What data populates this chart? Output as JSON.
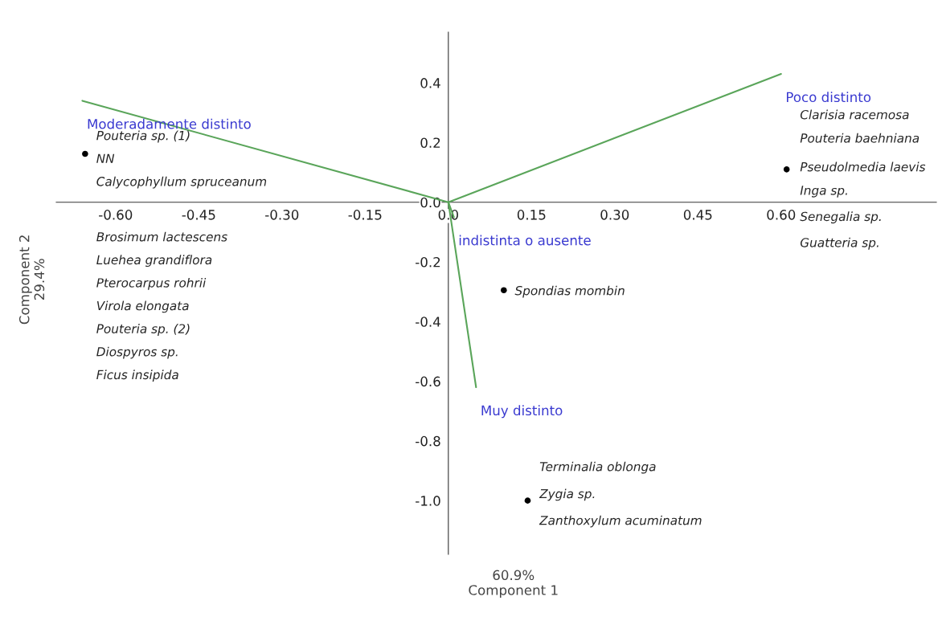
{
  "chart_data": {
    "type": "scatter",
    "xlabel": "60.9%\nComponent 1",
    "ylabel": "Component 2\n29.4%",
    "xlim": [
      -0.707,
      0.88
    ],
    "ylim": [
      -1.18,
      0.57
    ],
    "xticks": [
      {
        "value": -0.6,
        "label": "-0.60"
      },
      {
        "value": -0.45,
        "label": "-0.45"
      },
      {
        "value": -0.3,
        "label": "-0.30"
      },
      {
        "value": -0.15,
        "label": "-0.15"
      },
      {
        "value": 0,
        "label": "0.0"
      },
      {
        "value": 0.15,
        "label": "0.15"
      },
      {
        "value": 0.3,
        "label": "0.30"
      },
      {
        "value": 0.45,
        "label": "0.45"
      },
      {
        "value": 0.6,
        "label": "0.60"
      }
    ],
    "yticks": [
      {
        "value": -1.0,
        "label": "-1.0"
      },
      {
        "value": -0.8,
        "label": "-0.8"
      },
      {
        "value": -0.6,
        "label": "-0.6"
      },
      {
        "value": -0.4,
        "label": "-0.4"
      },
      {
        "value": -0.2,
        "label": "-0.2"
      },
      {
        "value": 0,
        "label": "0.0"
      },
      {
        "value": 0.2,
        "label": "0.2"
      },
      {
        "value": 0.4,
        "label": "0.4"
      }
    ],
    "grid": false,
    "legend": false,
    "series": [
      {
        "color": "#000000",
        "x": [
          -0.655,
          0.61,
          0.1,
          0.143
        ],
        "values": [
          0.162,
          0.11,
          -0.295,
          -1.0
        ]
      },
      {
        "type": "line",
        "name": "Moderadamente distinto",
        "color": "#5aa55a",
        "x": [
          0,
          -0.66
        ],
        "values": [
          0,
          0.34
        ]
      },
      {
        "type": "line",
        "name": "Poco distinto",
        "color": "#5aa55a",
        "x": [
          0,
          0.6
        ],
        "values": [
          0,
          0.43
        ]
      },
      {
        "type": "line",
        "name": "indistinta o ausente",
        "color": "#5aa55a",
        "x": [
          0,
          0.01
        ],
        "values": [
          0,
          -0.05
        ]
      },
      {
        "type": "line",
        "name": "Muy distinto",
        "color": "#5aa55a",
        "x": [
          0,
          0.05
        ],
        "values": [
          0,
          -0.62
        ]
      }
    ],
    "annotations": [
      "Pouteria sp. (1)",
      "NN",
      "Calycophyllum spruceanum",
      "Brosimum lactescens",
      "Luehea grandiflora",
      "Pterocarpus rohrii",
      "Virola elongata",
      "Pouteria sp. (2)",
      "Diospyros sp.",
      "Ficus insipida",
      "Clarisia racemosa",
      "Pouteria baehniana",
      "Pseudolmedia laevis",
      "Inga sp.",
      "Senegalia sp.",
      "Guatteria sp.",
      "Spondias mombin",
      "Terminalia oblonga",
      "Zygia sp.",
      "Zanthoxylum acuminatum"
    ]
  }
}
